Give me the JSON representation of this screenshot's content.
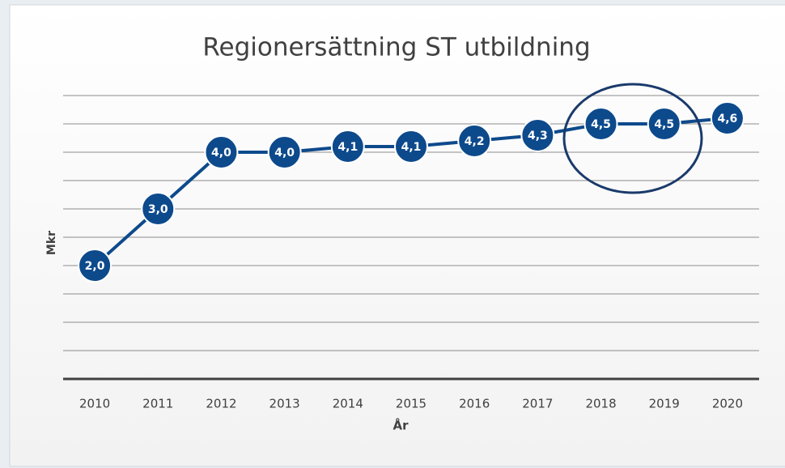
{
  "chart_data": {
    "type": "line",
    "title": "Regionersättning ST utbildning",
    "xlabel": "År",
    "ylabel": "Mkr",
    "categories": [
      "2010",
      "2011",
      "2012",
      "2013",
      "2014",
      "2015",
      "2016",
      "2017",
      "2018",
      "2019",
      "2020"
    ],
    "series": [
      {
        "name": "Regionersättning",
        "color": "#0d4a8c",
        "values": [
          2.0,
          3.0,
          4.0,
          4.0,
          4.1,
          4.1,
          4.2,
          4.3,
          4.5,
          4.5,
          4.6
        ],
        "value_labels": [
          "2,0",
          "3,0",
          "4,0",
          "4,0",
          "4,1",
          "4,1",
          "4,2",
          "4,3",
          "4,5",
          "4,5",
          "4,6"
        ]
      }
    ],
    "ylim": [
      0,
      5
    ],
    "yticks": [
      0,
      0.5,
      1,
      1.5,
      2,
      2.5,
      3,
      3.5,
      4,
      4.5,
      5
    ],
    "grid": true
  }
}
